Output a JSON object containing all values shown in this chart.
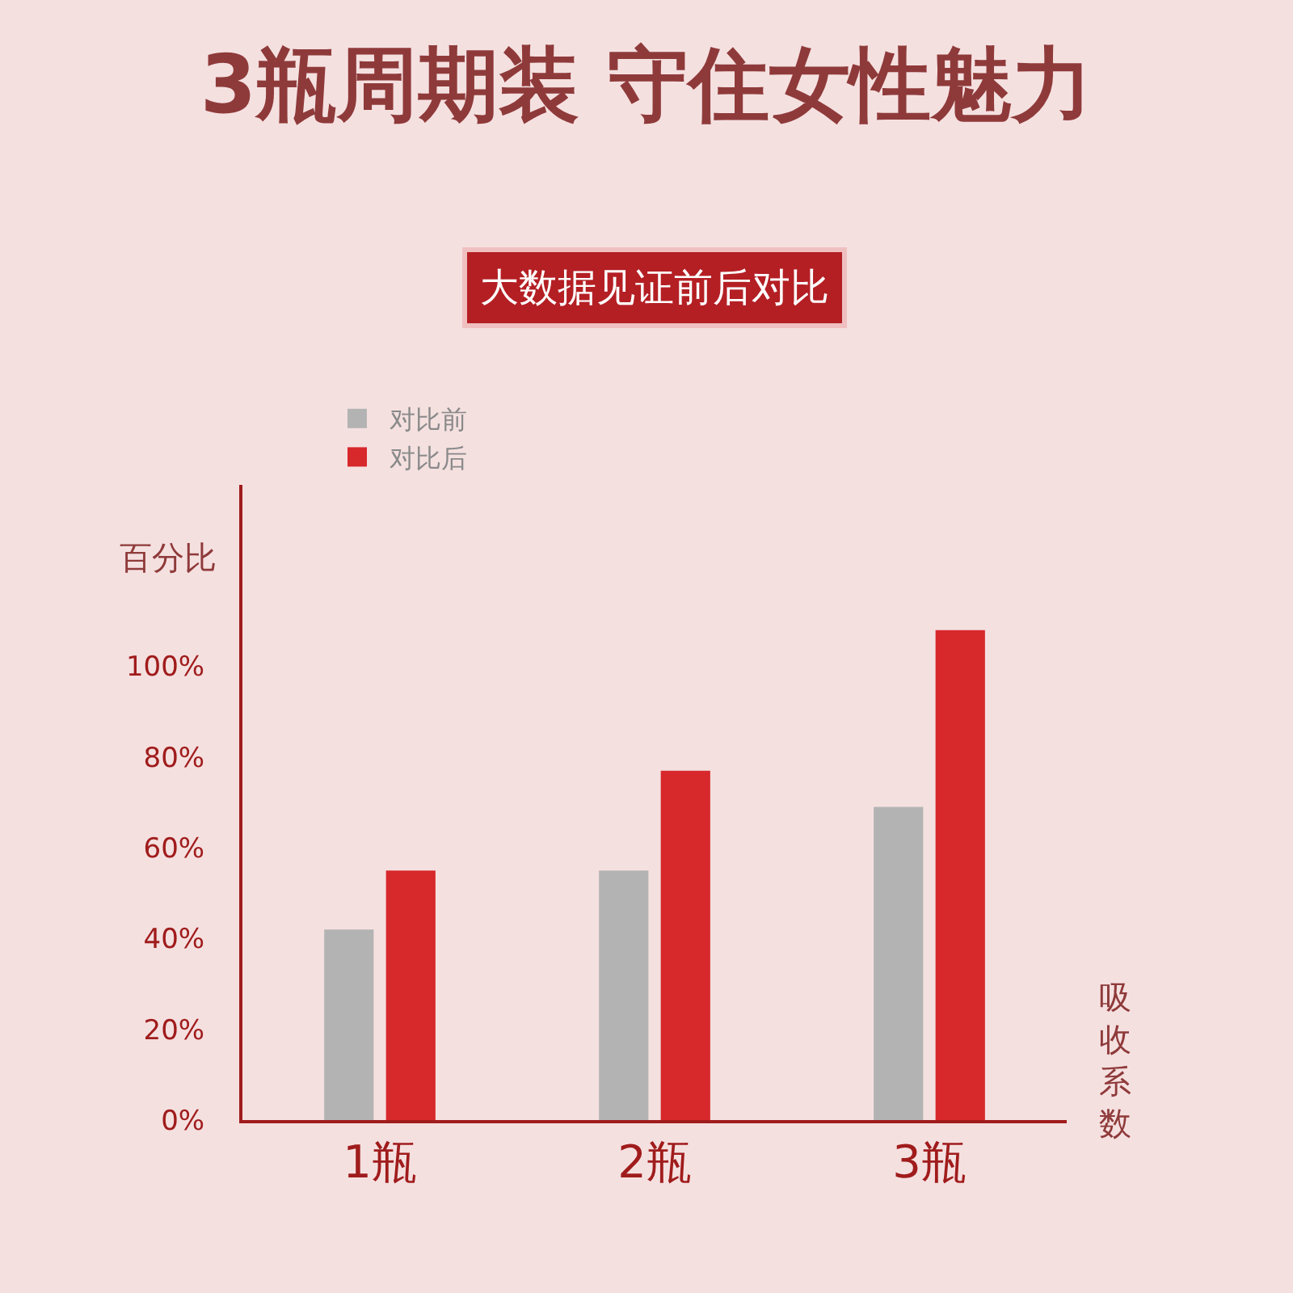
{
  "chart_data": {
    "type": "bar",
    "title": "3瓶周期装 守住女性魅力",
    "subtitle": "大数据见证前后对比",
    "ylabel": "百分比",
    "xlabel": "吸收系数",
    "categories": [
      "1瓶",
      "2瓶",
      "3瓶"
    ],
    "series": [
      {
        "name": "对比前",
        "color": "#b3b3b3",
        "values": [
          42,
          55,
          69
        ]
      },
      {
        "name": "对比后",
        "color": "#d7282c",
        "values": [
          55,
          77,
          108
        ]
      }
    ],
    "ylim": [
      0,
      140
    ],
    "yticks": [
      {
        "value": 0,
        "label": "0%"
      },
      {
        "value": 20,
        "label": "20%"
      },
      {
        "value": 40,
        "label": "40%"
      },
      {
        "value": 60,
        "label": "60%"
      },
      {
        "value": 80,
        "label": "80%"
      },
      {
        "value": 100,
        "label": "100%"
      }
    ],
    "grid": false,
    "legend": "top left"
  }
}
